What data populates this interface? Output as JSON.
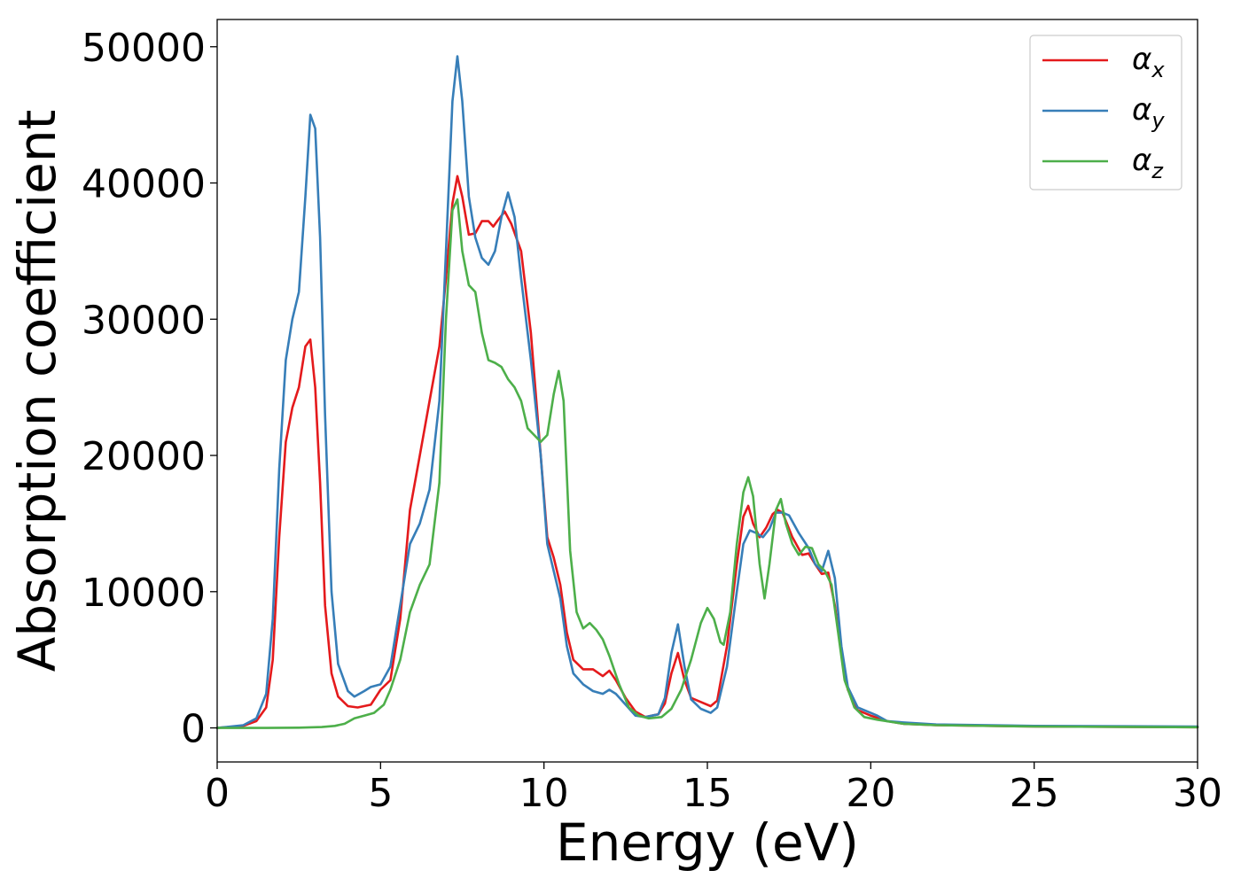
{
  "chart_data": {
    "type": "line",
    "title": "",
    "xlabel": "Energy (eV)",
    "ylabel": "Absorption coefficient",
    "xlim": [
      0,
      30
    ],
    "ylim": [
      -2500,
      52000
    ],
    "xticks": [
      0,
      5,
      10,
      15,
      20,
      25,
      30
    ],
    "yticks": [
      0,
      10000,
      20000,
      30000,
      40000,
      50000
    ],
    "grid": false,
    "legend_position": "top-right",
    "series": [
      {
        "name": "αx",
        "legend_base": "α",
        "legend_sub": "x",
        "color": "#e41a1c",
        "points": [
          [
            0,
            0
          ],
          [
            0.8,
            150
          ],
          [
            1.2,
            500
          ],
          [
            1.5,
            1500
          ],
          [
            1.7,
            5000
          ],
          [
            1.9,
            14000
          ],
          [
            2.1,
            21000
          ],
          [
            2.3,
            23500
          ],
          [
            2.5,
            25000
          ],
          [
            2.7,
            28000
          ],
          [
            2.85,
            28500
          ],
          [
            3.0,
            25000
          ],
          [
            3.15,
            18000
          ],
          [
            3.3,
            9000
          ],
          [
            3.5,
            4000
          ],
          [
            3.7,
            2300
          ],
          [
            4.0,
            1600
          ],
          [
            4.3,
            1500
          ],
          [
            4.7,
            1700
          ],
          [
            5.0,
            2800
          ],
          [
            5.3,
            3500
          ],
          [
            5.6,
            8000
          ],
          [
            5.9,
            16000
          ],
          [
            6.2,
            20000
          ],
          [
            6.5,
            24000
          ],
          [
            6.8,
            28000
          ],
          [
            7.0,
            33000
          ],
          [
            7.2,
            38500
          ],
          [
            7.35,
            40500
          ],
          [
            7.5,
            39000
          ],
          [
            7.7,
            36200
          ],
          [
            7.9,
            36300
          ],
          [
            8.1,
            37200
          ],
          [
            8.3,
            37200
          ],
          [
            8.45,
            36800
          ],
          [
            8.6,
            37300
          ],
          [
            8.8,
            37900
          ],
          [
            9.0,
            37000
          ],
          [
            9.3,
            35000
          ],
          [
            9.6,
            29000
          ],
          [
            9.9,
            20000
          ],
          [
            10.1,
            14000
          ],
          [
            10.3,
            12500
          ],
          [
            10.5,
            10500
          ],
          [
            10.7,
            7000
          ],
          [
            10.9,
            5000
          ],
          [
            11.2,
            4300
          ],
          [
            11.5,
            4300
          ],
          [
            11.8,
            3800
          ],
          [
            12.0,
            4200
          ],
          [
            12.2,
            3500
          ],
          [
            12.5,
            2200
          ],
          [
            12.8,
            1200
          ],
          [
            13.1,
            800
          ],
          [
            13.5,
            1000
          ],
          [
            13.7,
            1800
          ],
          [
            13.9,
            4000
          ],
          [
            14.1,
            5500
          ],
          [
            14.3,
            3500
          ],
          [
            14.5,
            2200
          ],
          [
            14.8,
            1900
          ],
          [
            15.1,
            1600
          ],
          [
            15.3,
            2000
          ],
          [
            15.6,
            6000
          ],
          [
            15.9,
            12000
          ],
          [
            16.1,
            15500
          ],
          [
            16.25,
            16300
          ],
          [
            16.4,
            15000
          ],
          [
            16.6,
            14000
          ],
          [
            16.8,
            14700
          ],
          [
            17.0,
            15700
          ],
          [
            17.15,
            16000
          ],
          [
            17.3,
            15800
          ],
          [
            17.6,
            14000
          ],
          [
            17.9,
            12700
          ],
          [
            18.1,
            12800
          ],
          [
            18.3,
            12000
          ],
          [
            18.5,
            11300
          ],
          [
            18.7,
            11400
          ],
          [
            18.9,
            9000
          ],
          [
            19.1,
            5500
          ],
          [
            19.3,
            2800
          ],
          [
            19.6,
            1300
          ],
          [
            20.0,
            900
          ],
          [
            20.5,
            500
          ],
          [
            21,
            300
          ],
          [
            22,
            200
          ],
          [
            25,
            100
          ],
          [
            30,
            50
          ]
        ]
      },
      {
        "name": "αy",
        "legend_base": "α",
        "legend_sub": "y",
        "color": "#377eb8",
        "points": [
          [
            0,
            0
          ],
          [
            0.8,
            200
          ],
          [
            1.2,
            700
          ],
          [
            1.5,
            2500
          ],
          [
            1.7,
            8000
          ],
          [
            1.9,
            19000
          ],
          [
            2.1,
            27000
          ],
          [
            2.3,
            30000
          ],
          [
            2.5,
            32000
          ],
          [
            2.7,
            39000
          ],
          [
            2.85,
            45000
          ],
          [
            3.0,
            44000
          ],
          [
            3.15,
            36000
          ],
          [
            3.3,
            23000
          ],
          [
            3.5,
            10000
          ],
          [
            3.7,
            4700
          ],
          [
            4.0,
            2700
          ],
          [
            4.2,
            2300
          ],
          [
            4.5,
            2700
          ],
          [
            4.7,
            3000
          ],
          [
            5.0,
            3200
          ],
          [
            5.3,
            4500
          ],
          [
            5.6,
            9000
          ],
          [
            5.9,
            13500
          ],
          [
            6.2,
            15000
          ],
          [
            6.5,
            17500
          ],
          [
            6.8,
            24000
          ],
          [
            7.0,
            35000
          ],
          [
            7.2,
            46000
          ],
          [
            7.35,
            49300
          ],
          [
            7.5,
            46000
          ],
          [
            7.7,
            39000
          ],
          [
            7.9,
            36000
          ],
          [
            8.1,
            34500
          ],
          [
            8.3,
            34000
          ],
          [
            8.5,
            35000
          ],
          [
            8.7,
            37500
          ],
          [
            8.9,
            39300
          ],
          [
            9.1,
            37500
          ],
          [
            9.3,
            33000
          ],
          [
            9.6,
            27000
          ],
          [
            9.9,
            20000
          ],
          [
            10.1,
            13500
          ],
          [
            10.3,
            11500
          ],
          [
            10.5,
            9500
          ],
          [
            10.7,
            6000
          ],
          [
            10.9,
            4000
          ],
          [
            11.2,
            3200
          ],
          [
            11.5,
            2700
          ],
          [
            11.8,
            2500
          ],
          [
            12.0,
            2800
          ],
          [
            12.2,
            2500
          ],
          [
            12.5,
            1700
          ],
          [
            12.8,
            900
          ],
          [
            13.1,
            800
          ],
          [
            13.5,
            1000
          ],
          [
            13.7,
            2200
          ],
          [
            13.9,
            5500
          ],
          [
            14.1,
            7600
          ],
          [
            14.3,
            4500
          ],
          [
            14.5,
            2100
          ],
          [
            14.8,
            1400
          ],
          [
            15.1,
            1100
          ],
          [
            15.3,
            1500
          ],
          [
            15.6,
            4500
          ],
          [
            15.9,
            10000
          ],
          [
            16.1,
            13500
          ],
          [
            16.3,
            14500
          ],
          [
            16.5,
            14300
          ],
          [
            16.7,
            14000
          ],
          [
            16.9,
            14600
          ],
          [
            17.1,
            15800
          ],
          [
            17.3,
            15800
          ],
          [
            17.5,
            15600
          ],
          [
            17.8,
            14300
          ],
          [
            18.1,
            13200
          ],
          [
            18.3,
            12000
          ],
          [
            18.5,
            11500
          ],
          [
            18.7,
            13000
          ],
          [
            18.9,
            11000
          ],
          [
            19.1,
            6000
          ],
          [
            19.3,
            3000
          ],
          [
            19.6,
            1500
          ],
          [
            20.0,
            1100
          ],
          [
            20.2,
            900
          ],
          [
            20.5,
            500
          ],
          [
            21,
            400
          ],
          [
            22,
            250
          ],
          [
            25,
            150
          ],
          [
            30,
            100
          ]
        ]
      },
      {
        "name": "αz",
        "legend_base": "α",
        "legend_sub": "z",
        "color": "#4daf4a",
        "points": [
          [
            0,
            0
          ],
          [
            1.5,
            0
          ],
          [
            2.5,
            20
          ],
          [
            3.2,
            60
          ],
          [
            3.6,
            150
          ],
          [
            3.9,
            300
          ],
          [
            4.2,
            700
          ],
          [
            4.5,
            900
          ],
          [
            4.8,
            1100
          ],
          [
            5.1,
            1700
          ],
          [
            5.3,
            2800
          ],
          [
            5.6,
            5000
          ],
          [
            5.9,
            8500
          ],
          [
            6.2,
            10500
          ],
          [
            6.5,
            12000
          ],
          [
            6.8,
            18000
          ],
          [
            7.0,
            30000
          ],
          [
            7.2,
            38000
          ],
          [
            7.35,
            38800
          ],
          [
            7.5,
            35000
          ],
          [
            7.7,
            32500
          ],
          [
            7.9,
            32000
          ],
          [
            8.1,
            29000
          ],
          [
            8.3,
            27000
          ],
          [
            8.5,
            26800
          ],
          [
            8.7,
            26500
          ],
          [
            8.9,
            25600
          ],
          [
            9.1,
            25000
          ],
          [
            9.3,
            24000
          ],
          [
            9.5,
            22000
          ],
          [
            9.7,
            21500
          ],
          [
            9.9,
            21000
          ],
          [
            10.1,
            21500
          ],
          [
            10.3,
            24500
          ],
          [
            10.45,
            26200
          ],
          [
            10.6,
            24000
          ],
          [
            10.8,
            13000
          ],
          [
            11.0,
            8500
          ],
          [
            11.2,
            7300
          ],
          [
            11.4,
            7700
          ],
          [
            11.6,
            7200
          ],
          [
            11.8,
            6500
          ],
          [
            12.0,
            5300
          ],
          [
            12.3,
            3200
          ],
          [
            12.6,
            1500
          ],
          [
            12.9,
            900
          ],
          [
            13.2,
            700
          ],
          [
            13.6,
            800
          ],
          [
            13.9,
            1400
          ],
          [
            14.2,
            2800
          ],
          [
            14.5,
            5000
          ],
          [
            14.8,
            7700
          ],
          [
            15.0,
            8800
          ],
          [
            15.2,
            8000
          ],
          [
            15.4,
            6300
          ],
          [
            15.5,
            6100
          ],
          [
            15.7,
            8500
          ],
          [
            15.9,
            13500
          ],
          [
            16.1,
            17300
          ],
          [
            16.25,
            18400
          ],
          [
            16.4,
            17000
          ],
          [
            16.6,
            12000
          ],
          [
            16.75,
            9500
          ],
          [
            16.9,
            12000
          ],
          [
            17.1,
            16000
          ],
          [
            17.25,
            16800
          ],
          [
            17.4,
            15000
          ],
          [
            17.6,
            13500
          ],
          [
            17.8,
            12700
          ],
          [
            18.0,
            13300
          ],
          [
            18.2,
            13200
          ],
          [
            18.4,
            12000
          ],
          [
            18.6,
            11500
          ],
          [
            18.8,
            10500
          ],
          [
            19.0,
            7000
          ],
          [
            19.2,
            3500
          ],
          [
            19.5,
            1500
          ],
          [
            19.8,
            800
          ],
          [
            20.2,
            600
          ],
          [
            21,
            300
          ],
          [
            22,
            200
          ],
          [
            25,
            100
          ],
          [
            30,
            50
          ]
        ]
      }
    ]
  }
}
